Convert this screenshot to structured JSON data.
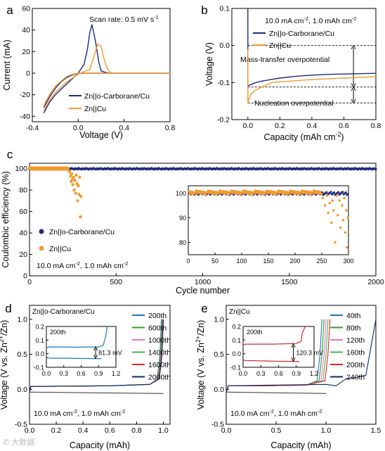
{
  "watermark": "✆ 大数据",
  "colors": {
    "navy": "#1f2a7a",
    "orange": "#f39a2c",
    "blue": "#1f77b4",
    "green": "#2ca02c",
    "red": "#d62728",
    "pink": "#e377c2",
    "purple": "#9467bd",
    "darkblue": "#0b2a66",
    "lime": "#4caf50"
  },
  "chart_data": [
    {
      "panel": "a",
      "type": "line",
      "xlabel": "Voltage (V)",
      "ylabel": "Current (mA)",
      "xlim": [
        -0.4,
        0.8
      ],
      "ylim": [
        -45,
        60
      ],
      "xticks": [
        "-0.4",
        "0.0",
        "0.4",
        "0.8"
      ],
      "yticks": [
        "-40",
        "-20",
        "0",
        "20",
        "40",
        "60"
      ],
      "annotation": "Scan rate: 0.5 mV s",
      "series": [
        {
          "name": "Zn||o-Carborane/Cu",
          "x": [
            -0.3,
            -0.25,
            -0.2,
            -0.1,
            -0.05,
            0.0,
            0.05,
            0.08,
            0.1,
            0.12,
            0.15,
            0.18,
            0.2,
            0.25,
            0.3,
            0.35,
            0.4,
            0.6,
            0.8,
            0.4,
            0.2,
            0.1,
            0.05,
            0.0,
            -0.05,
            -0.1,
            -0.15,
            -0.2,
            -0.25,
            -0.3
          ],
          "y": [
            -37,
            -27,
            -20,
            -10,
            -5,
            0,
            8,
            22,
            37,
            45,
            30,
            10,
            2,
            0.3,
            0,
            0,
            0,
            0,
            0,
            0,
            0,
            0,
            0,
            -0.3,
            -1.5,
            -4,
            -8,
            -14,
            -22,
            -32
          ]
        },
        {
          "name": "Zn||Cu",
          "x": [
            -0.3,
            -0.25,
            -0.2,
            -0.1,
            0.0,
            0.05,
            0.1,
            0.15,
            0.17,
            0.2,
            0.22,
            0.25,
            0.28,
            0.3,
            0.35,
            0.4,
            0.6,
            0.8,
            0.4,
            0.2,
            0.1,
            0.05,
            0.02,
            0.0,
            -0.05,
            -0.1,
            -0.2,
            -0.25,
            -0.3
          ],
          "y": [
            -35,
            -25,
            -18,
            -8,
            -1,
            1.5,
            3,
            20,
            27,
            25,
            15,
            5,
            0.5,
            0,
            0,
            0,
            0,
            0,
            0,
            0,
            0,
            0,
            0,
            -0.3,
            -1,
            -3,
            -12,
            -20,
            -30
          ]
        }
      ]
    },
    {
      "panel": "b",
      "type": "line",
      "xlabel": "Capacity (mAh cm",
      "ylabel": "Voltage (V)",
      "xlim": [
        -0.1,
        0.8
      ],
      "ylim": [
        -0.2,
        0.1
      ],
      "xticks": [
        "0.0",
        "0.2",
        "0.4",
        "0.6",
        "0.8"
      ],
      "yticks": [
        "-0.2",
        "-0.1",
        "0.0",
        "0.1"
      ],
      "annotation_main": "10.0 mA cm",
      "annotation_tail": ", 1.0 mAh cm",
      "mass_transfer_label": "Mass-transfer overpotential",
      "nucleation_label": "Nucleation overpotential",
      "dash_levels": [
        0.0,
        -0.112,
        -0.155
      ],
      "series": [
        {
          "name": "Zn||o-Carborane/Cu",
          "x": [
            0.0,
            0.0,
            0.005,
            0.05,
            0.1,
            0.2,
            0.3,
            0.4,
            0.5,
            0.6,
            0.7,
            0.8
          ],
          "y": [
            0.1,
            -0.11,
            -0.108,
            -0.1,
            -0.095,
            -0.088,
            -0.083,
            -0.08,
            -0.078,
            -0.077,
            -0.076,
            -0.075
          ]
        },
        {
          "name": "Zn||Cu",
          "x": [
            0.0,
            0.0,
            0.005,
            0.02,
            0.05,
            0.1,
            0.15,
            0.2,
            0.3,
            0.4,
            0.5,
            0.6,
            0.7,
            0.8
          ],
          "y": [
            -0.01,
            -0.155,
            -0.148,
            -0.13,
            -0.12,
            -0.11,
            -0.1,
            -0.098,
            -0.095,
            -0.092,
            -0.09,
            -0.088,
            -0.086,
            -0.084
          ]
        }
      ]
    },
    {
      "panel": "c",
      "type": "scatter",
      "xlabel": "Cycle number",
      "ylabel": "Coulombic efficiency (%)",
      "xlim": [
        0,
        2000
      ],
      "ylim": [
        0,
        105
      ],
      "xticks": [
        "0",
        "500",
        "1000",
        "1500",
        "2000"
      ],
      "yticks": [
        "0",
        "20",
        "40",
        "60",
        "80",
        "100"
      ],
      "condition_main": "10.0 mA cm",
      "condition_tail": ", 1.0 mAh cm",
      "series": [
        {
          "name": "Zn||o-Carborane/Cu",
          "pattern": "flat",
          "x_range": [
            1,
            2000
          ],
          "level": 99.8
        },
        {
          "name": "Zn||Cu",
          "pattern": "fail",
          "x_range": [
            1,
            300
          ],
          "level": 99.8,
          "drops": [
            [
              230,
              97
            ],
            [
              236,
              93
            ],
            [
              240,
              88
            ],
            [
              244,
              95
            ],
            [
              248,
              90
            ],
            [
              250,
              85
            ],
            [
              254,
              92
            ],
            [
              258,
              80
            ],
            [
              262,
              89
            ],
            [
              266,
              77
            ],
            [
              270,
              94
            ],
            [
              274,
              86
            ],
            [
              278,
              70
            ],
            [
              282,
              84
            ],
            [
              286,
              76
            ],
            [
              290,
              92
            ],
            [
              294,
              55
            ],
            [
              297,
              74
            ]
          ]
        }
      ],
      "inset": {
        "xlim": [
          0,
          300
        ],
        "ylim": [
          75,
          103
        ],
        "xticks": [
          "0",
          "50",
          "100",
          "150",
          "200",
          "250",
          "300"
        ],
        "yticks": [
          "80",
          "90",
          "100"
        ],
        "drops": [
          [
            252,
            98
          ],
          [
            256,
            95
          ],
          [
            260,
            99
          ],
          [
            262,
            92
          ],
          [
            265,
            96
          ],
          [
            268,
            88
          ],
          [
            270,
            97
          ],
          [
            272,
            93
          ],
          [
            275,
            80
          ],
          [
            278,
            99
          ],
          [
            280,
            91
          ],
          [
            283,
            97
          ],
          [
            285,
            86
          ],
          [
            288,
            95
          ],
          [
            290,
            89
          ],
          [
            292,
            98
          ],
          [
            294,
            84
          ],
          [
            296,
            93
          ],
          [
            297,
            78
          ],
          [
            299,
            90
          ]
        ]
      }
    },
    {
      "panel": "d",
      "type": "line",
      "title": "Zn||o-Carborane/Cu",
      "xlabel": "Capacity (mAh)",
      "ylabel": "Voltage (V vs. Zn",
      "xlim": [
        0,
        1.05
      ],
      "ylim": [
        -0.5,
        1.2
      ],
      "xticks": [
        "0.0",
        "0.2",
        "0.4",
        "0.6",
        "0.8",
        "1.0"
      ],
      "yticks": [
        "-0.5",
        "0.0",
        "0.5",
        "1.0"
      ],
      "condition_main": "10.0 mA cm",
      "condition_tail": ", 1.0 mAh cm",
      "legend": [
        "200th",
        "600th",
        "1000th",
        "1400th",
        "1600th",
        "2000th"
      ],
      "inset": {
        "label": "200th",
        "value": "81.3 mV",
        "xlim": [
          0,
          1.2
        ],
        "ylim": [
          -0.1,
          0.2
        ],
        "xticks": [
          "0.0",
          "0.3",
          "0.6",
          "0.9",
          "1.2"
        ],
        "yticks": [
          "-0.1",
          "0.0",
          "0.1",
          "0.2"
        ]
      }
    },
    {
      "panel": "e",
      "type": "line",
      "title": "Zn||Cu",
      "xlabel": "Capacity (mAh)",
      "ylabel": "Voltage (V vs. Zn",
      "xlim": [
        0,
        1.5
      ],
      "ylim": [
        -0.5,
        1.2
      ],
      "xticks": [
        "0.0",
        "0.5",
        "1.0",
        "1.5"
      ],
      "yticks": [
        "-0.5",
        "0.0",
        "0.5",
        "1.0"
      ],
      "condition_main": "10.0 mA cm",
      "condition_tail": ", 1.0 mAh cm",
      "legend": [
        "40th",
        "80th",
        "120th",
        "160th",
        "200th",
        "240th"
      ],
      "inset": {
        "label": "200th",
        "value": "120.3 mV",
        "xlim": [
          0,
          1.2
        ],
        "ylim": [
          -0.1,
          0.2
        ],
        "xticks": [
          "0.0",
          "0.3",
          "0.6",
          "0.9",
          "1.2"
        ],
        "yticks": [
          "-0.1",
          "0.0",
          "0.1",
          "0.2"
        ]
      }
    }
  ],
  "panel_labels": [
    "a",
    "b",
    "c",
    "d",
    "e"
  ]
}
